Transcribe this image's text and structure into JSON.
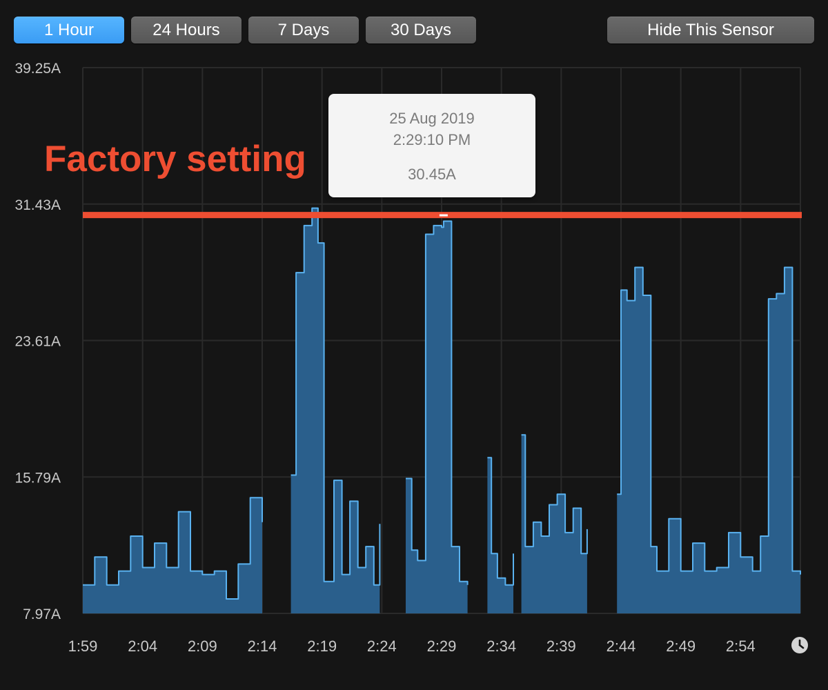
{
  "toolbar": {
    "buttons": [
      {
        "label": "1 Hour",
        "active": true
      },
      {
        "label": "24 Hours",
        "active": false
      },
      {
        "label": "7 Days",
        "active": false
      },
      {
        "label": "30 Days",
        "active": false
      }
    ],
    "hide_label": "Hide This Sensor"
  },
  "annotation": {
    "text": "Factory setting",
    "color": "#ee4e32",
    "threshold": 30.8
  },
  "tooltip": {
    "date": "25 Aug 2019",
    "time": "2:29:10 PM",
    "value": "30.45A"
  },
  "colors": {
    "line": "#5ab2f0",
    "fill": "#2a5f8c",
    "grid": "#2a2a2a",
    "threshold": "#ee4e32"
  },
  "chart_data": {
    "type": "area",
    "xlabel": "",
    "ylabel": "",
    "y_tick_labels": [
      "39.25A",
      "31.43A",
      "23.61A",
      "15.79A",
      "7.97A"
    ],
    "y_ticks": [
      39.25,
      31.43,
      23.61,
      15.79,
      7.97
    ],
    "ylim": [
      7.97,
      39.25
    ],
    "x_tick_labels": [
      "1:59",
      "2:04",
      "2:09",
      "2:14",
      "2:19",
      "2:24",
      "2:29",
      "2:34",
      "2:39",
      "2:44",
      "2:49",
      "2:54"
    ],
    "x_range": [
      "1:59",
      "2:59"
    ],
    "grid": true,
    "series": [
      {
        "unit": "A",
        "segments": [
          {
            "t": [
              "1:59",
              "2:00",
              "2:01",
              "2:02",
              "2:03",
              "2:04",
              "2:05",
              "2:06",
              "2:07",
              "2:08",
              "2:09",
              "2:10",
              "2:11",
              "2:12",
              "2:13",
              "2:14"
            ],
            "y": [
              9.6,
              11.2,
              9.6,
              10.4,
              12.4,
              10.6,
              12.0,
              10.6,
              13.8,
              10.4,
              10.2,
              10.4,
              8.8,
              10.8,
              14.6,
              13.2
            ]
          },
          {
            "t": [
              "2:16:24",
              "2:16:50",
              "2:17:30",
              "2:18:10",
              "2:18:40",
              "2:19:10",
              "2:20:00",
              "2:20:40",
              "2:21:20",
              "2:22:00",
              "2:22:40",
              "2:23:20",
              "2:23:50"
            ],
            "y": [
              15.9,
              27.5,
              30.2,
              31.2,
              29.2,
              9.8,
              15.6,
              10.2,
              14.4,
              10.6,
              11.8,
              9.6,
              13.1
            ]
          },
          {
            "t": [
              "2:26:00",
              "2:26:30",
              "2:27:00",
              "2:27:40",
              "2:28:20",
              "2:29:00",
              "2:29:10",
              "2:29:50",
              "2:30:30",
              "2:31:10"
            ],
            "y": [
              15.7,
              11.6,
              11.0,
              29.7,
              30.2,
              30.1,
              30.45,
              11.8,
              9.8,
              9.6
            ]
          },
          {
            "t": [
              "2:32:50",
              "2:33:10",
              "2:33:40",
              "2:34:20",
              "2:34:50",
              "2:35:00"
            ],
            "y": [
              16.9,
              11.4,
              10.0,
              9.6,
              9.6,
              11.4
            ]
          },
          {
            "t": [
              "2:35:40",
              "2:36:00",
              "2:36:40",
              "2:37:20",
              "2:38:00",
              "2:38:40",
              "2:39:20",
              "2:40:00",
              "2:40:40",
              "2:41:10"
            ],
            "y": [
              18.2,
              11.8,
              13.2,
              12.4,
              14.2,
              14.8,
              12.6,
              14.0,
              11.4,
              12.8
            ]
          },
          {
            "t": [
              "2:43:40",
              "2:44:00",
              "2:44:30",
              "2:45:10",
              "2:45:50",
              "2:46:30",
              "2:47:00",
              "2:48:00",
              "2:49:00",
              "2:50:00",
              "2:51:00",
              "2:52:00",
              "2:53:00",
              "2:54:00",
              "2:55:00",
              "2:55:40",
              "2:56:20",
              "2:57:00",
              "2:57:40",
              "2:58:20",
              "2:59:00"
            ],
            "y": [
              14.8,
              26.5,
              25.9,
              27.8,
              26.2,
              11.8,
              10.4,
              13.4,
              10.4,
              12.0,
              10.4,
              10.6,
              12.6,
              11.2,
              10.4,
              12.4,
              26.0,
              26.3,
              27.8,
              10.4,
              10.2
            ]
          }
        ]
      }
    ]
  }
}
